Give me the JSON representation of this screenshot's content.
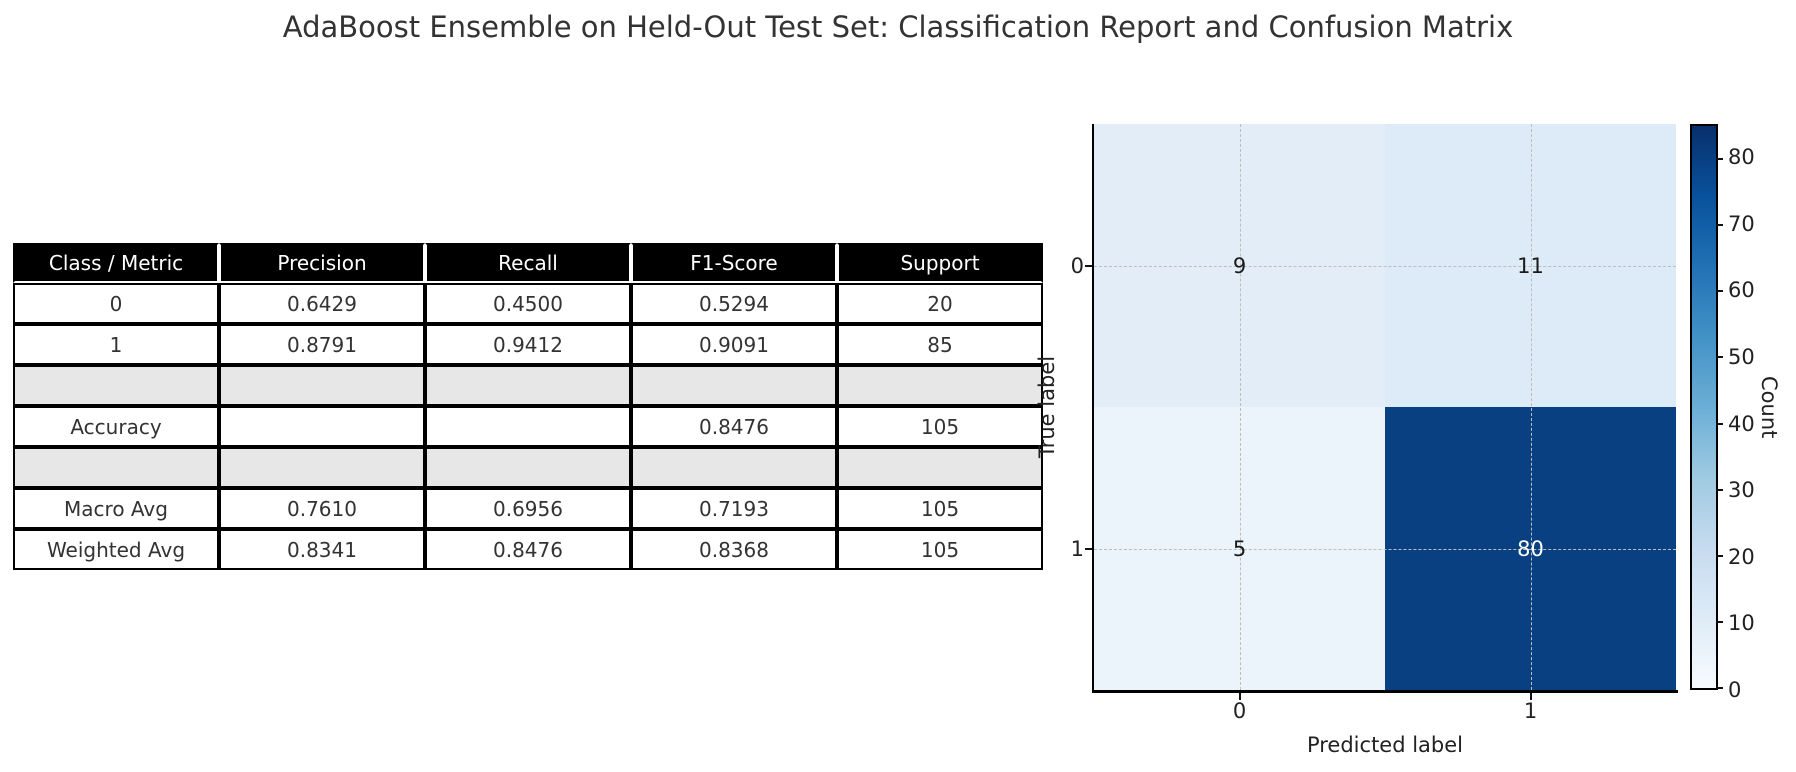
{
  "title": "AdaBoost Ensemble on Held-Out Test Set: Classification Report and Confusion Matrix",
  "chart_data": [
    {
      "type": "table",
      "columns": [
        "Class / Metric",
        "Precision",
        "Recall",
        "F1-Score",
        "Support"
      ],
      "rows": [
        [
          "0",
          "0.6429",
          "0.4500",
          "0.5294",
          "20"
        ],
        [
          "1",
          "0.8791",
          "0.9412",
          "0.9091",
          "85"
        ],
        [
          "",
          "",
          "",
          "",
          ""
        ],
        [
          "Accuracy",
          "",
          "",
          "0.8476",
          "105"
        ],
        [
          "",
          "",
          "",
          "",
          ""
        ],
        [
          "Macro Avg",
          "0.7610",
          "0.6956",
          "0.7193",
          "105"
        ],
        [
          "Weighted Avg",
          "0.8341",
          "0.8476",
          "0.8368",
          "105"
        ]
      ],
      "header_bg": "#000000",
      "header_text": "#ffffff",
      "spacer_bg": "#e7e7e7"
    },
    {
      "type": "heatmap",
      "xlabel": "Predicted label",
      "ylabel": "True label",
      "x_ticks": [
        "0",
        "1"
      ],
      "y_ticks": [
        "0",
        "1"
      ],
      "values": [
        [
          9,
          11
        ],
        [
          5,
          80
        ]
      ],
      "vmin": 0,
      "vmax": 85,
      "colormap": "Blues",
      "grid": "dashed",
      "colorbar": {
        "label": "Count",
        "ticks": [
          0,
          10,
          20,
          30,
          40,
          50,
          60,
          70,
          80
        ],
        "position": "right"
      }
    }
  ]
}
